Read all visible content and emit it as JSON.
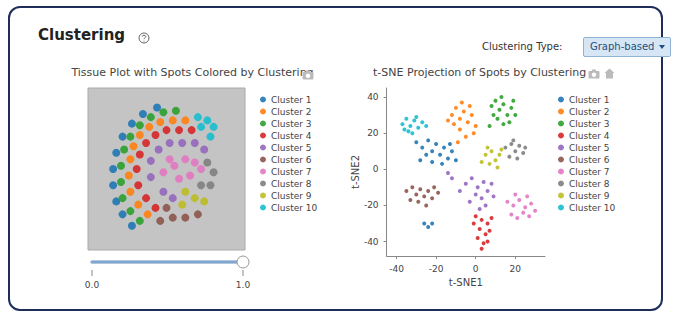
{
  "header": {
    "title": "Clustering",
    "control_label": "Clustering Type:",
    "control_value": "Graph-based"
  },
  "chart_data": [
    {
      "type": "scatter",
      "title": "Tissue Plot with Spots Colored by Clustering",
      "xlim": [
        0,
        100
      ],
      "ylim": [
        0,
        100
      ],
      "tick_labels": false,
      "grid": false,
      "legend": "right",
      "marker": "circle",
      "series": [
        {
          "name": "Cluster 1",
          "color": "#1f77b4",
          "values": [
            [
              18,
              30
            ],
            [
              16,
              40
            ],
            [
              16,
              50
            ],
            [
              18,
              60
            ],
            [
              22,
              70
            ],
            [
              28,
              78
            ],
            [
              35,
              84
            ],
            [
              44,
              88
            ],
            [
              22,
              22
            ],
            [
              28,
              15
            ]
          ]
        },
        {
          "name": "Cluster 2",
          "color": "#ff7f0e",
          "values": [
            [
              27,
              36
            ],
            [
              26,
              46
            ],
            [
              27,
              56
            ],
            [
              29,
              64
            ],
            [
              33,
              71
            ],
            [
              39,
              76
            ],
            [
              46,
              79
            ],
            [
              54,
              80
            ],
            [
              62,
              80
            ],
            [
              32,
              28
            ],
            [
              38,
              22
            ]
          ]
        },
        {
          "name": "Cluster 3",
          "color": "#2ca02c",
          "values": [
            [
              22,
              32
            ],
            [
              21,
              42
            ],
            [
              21,
              52
            ],
            [
              23,
              62
            ],
            [
              27,
              70
            ],
            [
              33,
              77
            ],
            [
              40,
              82
            ],
            [
              48,
              85
            ],
            [
              56,
              86
            ],
            [
              27,
              24
            ],
            [
              33,
              18
            ]
          ]
        },
        {
          "name": "Cluster 4",
          "color": "#d62728",
          "values": [
            [
              32,
              40
            ],
            [
              31,
              50
            ],
            [
              33,
              59
            ],
            [
              37,
              66
            ],
            [
              43,
              71
            ],
            [
              50,
              74
            ],
            [
              58,
              74
            ],
            [
              66,
              74
            ],
            [
              37,
              32
            ],
            [
              43,
              26
            ]
          ]
        },
        {
          "name": "Cluster 5",
          "color": "#9467bd",
          "values": [
            [
              40,
              45
            ],
            [
              40,
              55
            ],
            [
              45,
              62
            ],
            [
              52,
              66
            ],
            [
              60,
              66
            ],
            [
              68,
              66
            ],
            [
              74,
              62
            ],
            [
              48,
              36
            ],
            [
              54,
              32
            ]
          ]
        },
        {
          "name": "Cluster 6",
          "color": "#8c564b",
          "values": [
            [
              46,
              18
            ],
            [
              54,
              20
            ],
            [
              62,
              20
            ],
            [
              50,
              26
            ],
            [
              70,
              22
            ]
          ]
        },
        {
          "name": "Cluster 7",
          "color": "#e377c2",
          "values": [
            [
              48,
              48
            ],
            [
              55,
              52
            ],
            [
              62,
              56
            ],
            [
              68,
              54
            ],
            [
              58,
              44
            ],
            [
              65,
              46
            ],
            [
              72,
              50
            ],
            [
              52,
              56
            ]
          ]
        },
        {
          "name": "Cluster 8",
          "color": "#7f7f7f",
          "values": [
            [
              76,
              54
            ],
            [
              80,
              48
            ],
            [
              78,
              40
            ],
            [
              72,
              40
            ]
          ]
        },
        {
          "name": "Cluster 9",
          "color": "#bcbd22",
          "values": [
            [
              62,
              36
            ],
            [
              68,
              32
            ],
            [
              74,
              30
            ],
            [
              60,
              28
            ]
          ]
        },
        {
          "name": "Cluster 10",
          "color": "#17becf",
          "values": [
            [
              70,
              82
            ],
            [
              76,
              80
            ],
            [
              80,
              76
            ],
            [
              72,
              76
            ],
            [
              78,
              70
            ]
          ]
        }
      ]
    },
    {
      "type": "scatter",
      "title": "t-SNE Projection of Spots by Clustering",
      "x_label": "t-SNE1",
      "y_label": "t-SNE2",
      "xlim": [
        -45,
        35
      ],
      "xticks": [
        -40,
        -20,
        0,
        20
      ],
      "ylim": [
        -48,
        45
      ],
      "yticks": [
        -40,
        -20,
        0,
        20,
        40
      ],
      "grid": false,
      "legend": "right",
      "marker": "circle",
      "series": [
        {
          "name": "Cluster 1",
          "color": "#1f77b4",
          "values": [
            [
              -30,
              15
            ],
            [
              -27,
              12
            ],
            [
              -24,
              16
            ],
            [
              -22,
              10
            ],
            [
              -20,
              14
            ],
            [
              -18,
              8
            ],
            [
              -16,
              12
            ],
            [
              -14,
              6
            ],
            [
              -12,
              10
            ],
            [
              -25,
              8
            ],
            [
              -28,
              5
            ],
            [
              -22,
              4
            ],
            [
              -17,
              3
            ],
            [
              -26,
              -30
            ],
            [
              -24,
              -32
            ],
            [
              -22,
              -30
            ],
            [
              -10,
              5
            ],
            [
              -13,
              14
            ]
          ]
        },
        {
          "name": "Cluster 2",
          "color": "#ff7f0e",
          "values": [
            [
              -12,
              30
            ],
            [
              -10,
              34
            ],
            [
              -8,
              28
            ],
            [
              -6,
              32
            ],
            [
              -4,
              26
            ],
            [
              -2,
              30
            ],
            [
              -8,
              22
            ],
            [
              -5,
              18
            ],
            [
              -11,
              25
            ],
            [
              -14,
              27
            ],
            [
              -3,
              35
            ],
            [
              -7,
              37
            ],
            [
              0,
              24
            ],
            [
              -9,
              15
            ],
            [
              -1,
              20
            ]
          ]
        },
        {
          "name": "Cluster 3",
          "color": "#2ca02c",
          "values": [
            [
              8,
              35
            ],
            [
              10,
              38
            ],
            [
              12,
              33
            ],
            [
              14,
              36
            ],
            [
              16,
              30
            ],
            [
              18,
              34
            ],
            [
              11,
              28
            ],
            [
              14,
              25
            ],
            [
              17,
              26
            ],
            [
              20,
              30
            ],
            [
              9,
              30
            ],
            [
              13,
              40
            ],
            [
              19,
              38
            ],
            [
              7,
              24
            ]
          ]
        },
        {
          "name": "Cluster 4",
          "color": "#d62728",
          "values": [
            [
              0,
              -26
            ],
            [
              3,
              -28
            ],
            [
              6,
              -30
            ],
            [
              2,
              -33
            ],
            [
              5,
              -36
            ],
            [
              1,
              -38
            ],
            [
              4,
              -41
            ],
            [
              7,
              -34
            ],
            [
              -1,
              -30
            ],
            [
              3,
              -44
            ],
            [
              8,
              -27
            ],
            [
              6,
              -40
            ]
          ]
        },
        {
          "name": "Cluster 5",
          "color": "#9467bd",
          "values": [
            [
              -5,
              -8
            ],
            [
              -2,
              -5
            ],
            [
              1,
              -10
            ],
            [
              4,
              -7
            ],
            [
              6,
              -12
            ],
            [
              3,
              -16
            ],
            [
              0,
              -14
            ],
            [
              -3,
              -18
            ],
            [
              5,
              -20
            ],
            [
              8,
              -8
            ],
            [
              -8,
              -12
            ],
            [
              2,
              -22
            ],
            [
              9,
              -15
            ],
            [
              -12,
              -5
            ],
            [
              -14,
              -2
            ]
          ]
        },
        {
          "name": "Cluster 6",
          "color": "#8c564b",
          "values": [
            [
              -35,
              -12
            ],
            [
              -32,
              -10
            ],
            [
              -30,
              -14
            ],
            [
              -28,
              -11
            ],
            [
              -26,
              -15
            ],
            [
              -24,
              -12
            ],
            [
              -22,
              -16
            ],
            [
              -33,
              -17
            ],
            [
              -29,
              -18
            ],
            [
              -25,
              -20
            ],
            [
              -21,
              -10
            ],
            [
              -19,
              -13
            ]
          ]
        },
        {
          "name": "Cluster 7",
          "color": "#e377c2",
          "values": [
            [
              16,
              -18
            ],
            [
              19,
              -20
            ],
            [
              22,
              -17
            ],
            [
              25,
              -21
            ],
            [
              28,
              -19
            ],
            [
              18,
              -25
            ],
            [
              21,
              -27
            ],
            [
              24,
              -24
            ],
            [
              27,
              -26
            ],
            [
              30,
              -23
            ],
            [
              20,
              -14
            ],
            [
              26,
              -15
            ]
          ]
        },
        {
          "name": "Cluster 8",
          "color": "#7f7f7f",
          "values": [
            [
              15,
              12
            ],
            [
              18,
              14
            ],
            [
              20,
              10
            ],
            [
              22,
              13
            ],
            [
              24,
              9
            ],
            [
              17,
              7
            ],
            [
              21,
              6
            ],
            [
              25,
              12
            ],
            [
              19,
              16
            ]
          ]
        },
        {
          "name": "Cluster 9",
          "color": "#bcbd22",
          "values": [
            [
              5,
              8
            ],
            [
              8,
              10
            ],
            [
              10,
              5
            ],
            [
              12,
              8
            ],
            [
              7,
              3
            ],
            [
              11,
              1
            ],
            [
              6,
              12
            ],
            [
              3,
              4
            ],
            [
              13,
              11
            ]
          ]
        },
        {
          "name": "Cluster 10",
          "color": "#17becf",
          "values": [
            [
              -37,
              25
            ],
            [
              -35,
              28
            ],
            [
              -33,
              24
            ],
            [
              -31,
              27
            ],
            [
              -29,
              23
            ],
            [
              -34,
              21
            ],
            [
              -30,
              29
            ],
            [
              -27,
              26
            ],
            [
              -36,
              22
            ],
            [
              -32,
              20
            ],
            [
              -25,
              24
            ]
          ]
        }
      ]
    }
  ],
  "slider": {
    "xlim": [
      0,
      1
    ],
    "ticks": [
      {
        "value": 0,
        "label": "0.0"
      },
      {
        "value": 1,
        "label": "1.0"
      }
    ],
    "value": 1
  }
}
